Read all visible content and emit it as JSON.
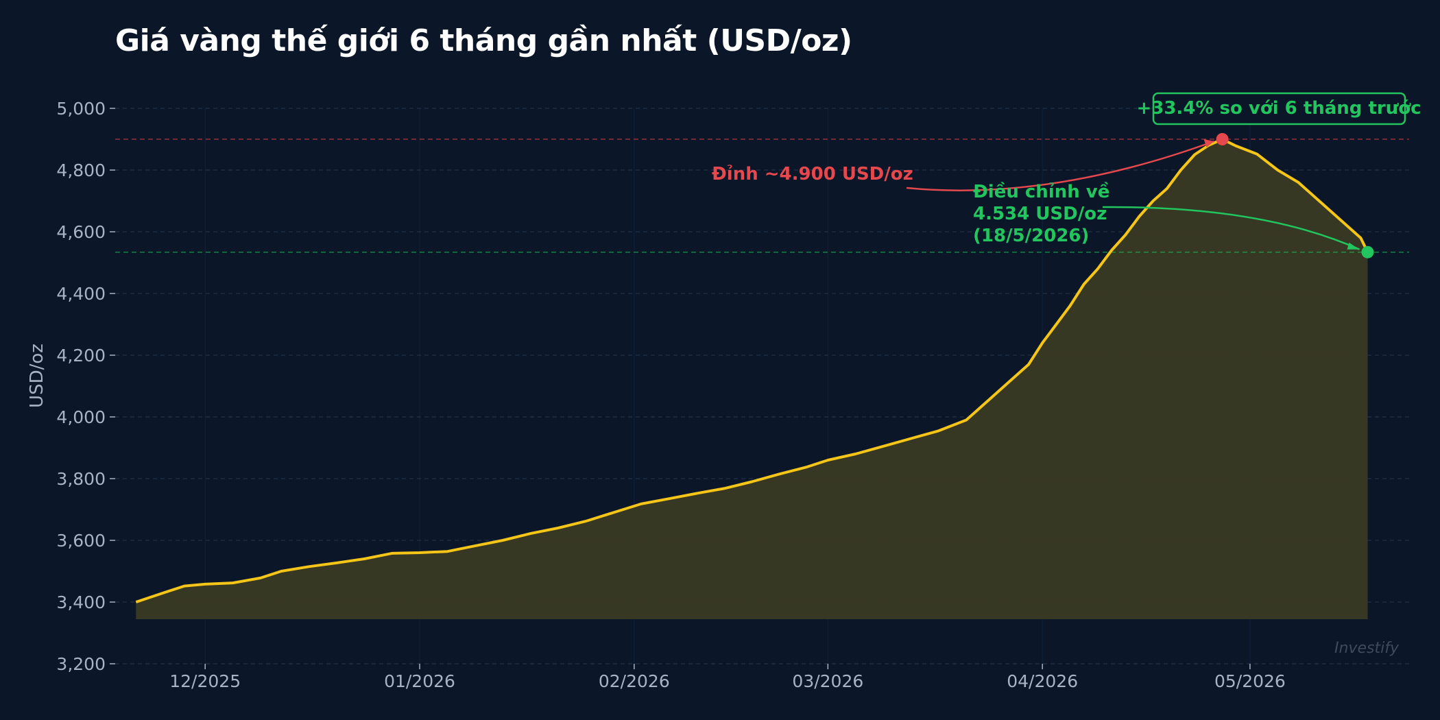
{
  "chart_data": {
    "type": "area",
    "title": "Giá vàng thế giới 6 tháng gần nhất (USD/oz)",
    "ylabel": "USD/oz",
    "xlabel": "",
    "ylim": [
      3200,
      5000
    ],
    "yticks": [
      3200,
      3400,
      3600,
      3800,
      4000,
      4200,
      4400,
      4600,
      4800,
      5000
    ],
    "ytick_labels": [
      "3,200",
      "3,400",
      "3,600",
      "3,800",
      "4,000",
      "4,200",
      "4,400",
      "4,600",
      "4,800",
      "5,000"
    ],
    "xlim": [
      "2025-11-18",
      "2026-05-24"
    ],
    "xticks": [
      {
        "date": "2025-12-01",
        "label": "12/2025"
      },
      {
        "date": "2026-01-01",
        "label": "01/2026"
      },
      {
        "date": "2026-02-01",
        "label": "02/2026"
      },
      {
        "date": "2026-03-01",
        "label": "03/2026"
      },
      {
        "date": "2026-04-01",
        "label": "04/2026"
      },
      {
        "date": "2026-05-01",
        "label": "05/2026"
      }
    ],
    "grid": true,
    "series": [
      {
        "values": [
          [
            "2025-11-21",
            3400
          ],
          [
            "2025-11-25",
            3430
          ],
          [
            "2025-11-28",
            3452
          ],
          [
            "2025-12-01",
            3458
          ],
          [
            "2025-12-05",
            3462
          ],
          [
            "2025-12-09",
            3478
          ],
          [
            "2025-12-12",
            3500
          ],
          [
            "2025-12-16",
            3515
          ],
          [
            "2025-12-20",
            3527
          ],
          [
            "2025-12-24",
            3540
          ],
          [
            "2025-12-28",
            3558
          ],
          [
            "2026-01-01",
            3560
          ],
          [
            "2026-01-05",
            3564
          ],
          [
            "2026-01-09",
            3582
          ],
          [
            "2026-01-13",
            3600
          ],
          [
            "2026-01-17",
            3622
          ],
          [
            "2026-01-21",
            3640
          ],
          [
            "2026-01-25",
            3662
          ],
          [
            "2026-01-29",
            3690
          ],
          [
            "2026-02-02",
            3718
          ],
          [
            "2026-02-06",
            3735
          ],
          [
            "2026-02-10",
            3752
          ],
          [
            "2026-02-14",
            3768
          ],
          [
            "2026-02-18",
            3790
          ],
          [
            "2026-02-22",
            3815
          ],
          [
            "2026-02-26",
            3838
          ],
          [
            "2026-03-01",
            3860
          ],
          [
            "2026-03-05",
            3880
          ],
          [
            "2026-03-09",
            3905
          ],
          [
            "2026-03-13",
            3930
          ],
          [
            "2026-03-17",
            3955
          ],
          [
            "2026-03-21",
            3990
          ],
          [
            "2026-03-24",
            4050
          ],
          [
            "2026-03-27",
            4110
          ],
          [
            "2026-03-30",
            4170
          ],
          [
            "2026-04-01",
            4240
          ],
          [
            "2026-04-03",
            4300
          ],
          [
            "2026-04-05",
            4360
          ],
          [
            "2026-04-07",
            4430
          ],
          [
            "2026-04-09",
            4480
          ],
          [
            "2026-04-11",
            4540
          ],
          [
            "2026-04-13",
            4590
          ],
          [
            "2026-04-15",
            4650
          ],
          [
            "2026-04-17",
            4700
          ],
          [
            "2026-04-19",
            4740
          ],
          [
            "2026-04-21",
            4800
          ],
          [
            "2026-04-23",
            4850
          ],
          [
            "2026-04-25",
            4880
          ],
          [
            "2026-04-27",
            4900
          ],
          [
            "2026-04-29",
            4878
          ],
          [
            "2026-05-02",
            4852
          ],
          [
            "2026-05-05",
            4800
          ],
          [
            "2026-05-08",
            4760
          ],
          [
            "2026-05-11",
            4700
          ],
          [
            "2026-05-14",
            4640
          ],
          [
            "2026-05-17",
            4580
          ],
          [
            "2026-05-18",
            4534
          ]
        ]
      }
    ],
    "colors": {
      "line": "#f5c518",
      "fill": "#3a3a24",
      "peak": "#e5484d",
      "current": "#22c55e",
      "grid": "#22324a",
      "background": "#0b1628"
    },
    "reference_lines": [
      {
        "y": 4900,
        "color": "#e5484d"
      },
      {
        "y": 4534,
        "color": "#22c55e"
      }
    ],
    "annotations": {
      "peak": {
        "date": "2026-04-27",
        "value": 4900,
        "text": "Đỉnh ~4.900 USD/oz",
        "color": "#e5484d"
      },
      "current": {
        "date": "2026-05-18",
        "value": 4534,
        "lines": [
          "Điều chỉnh về",
          "4.534 USD/oz",
          "(18/5/2026)"
        ],
        "color": "#22c55e"
      },
      "change_box": {
        "text": "+33.4% so với 6 tháng trước",
        "color": "#22c55e"
      }
    },
    "watermark": "Investify"
  }
}
